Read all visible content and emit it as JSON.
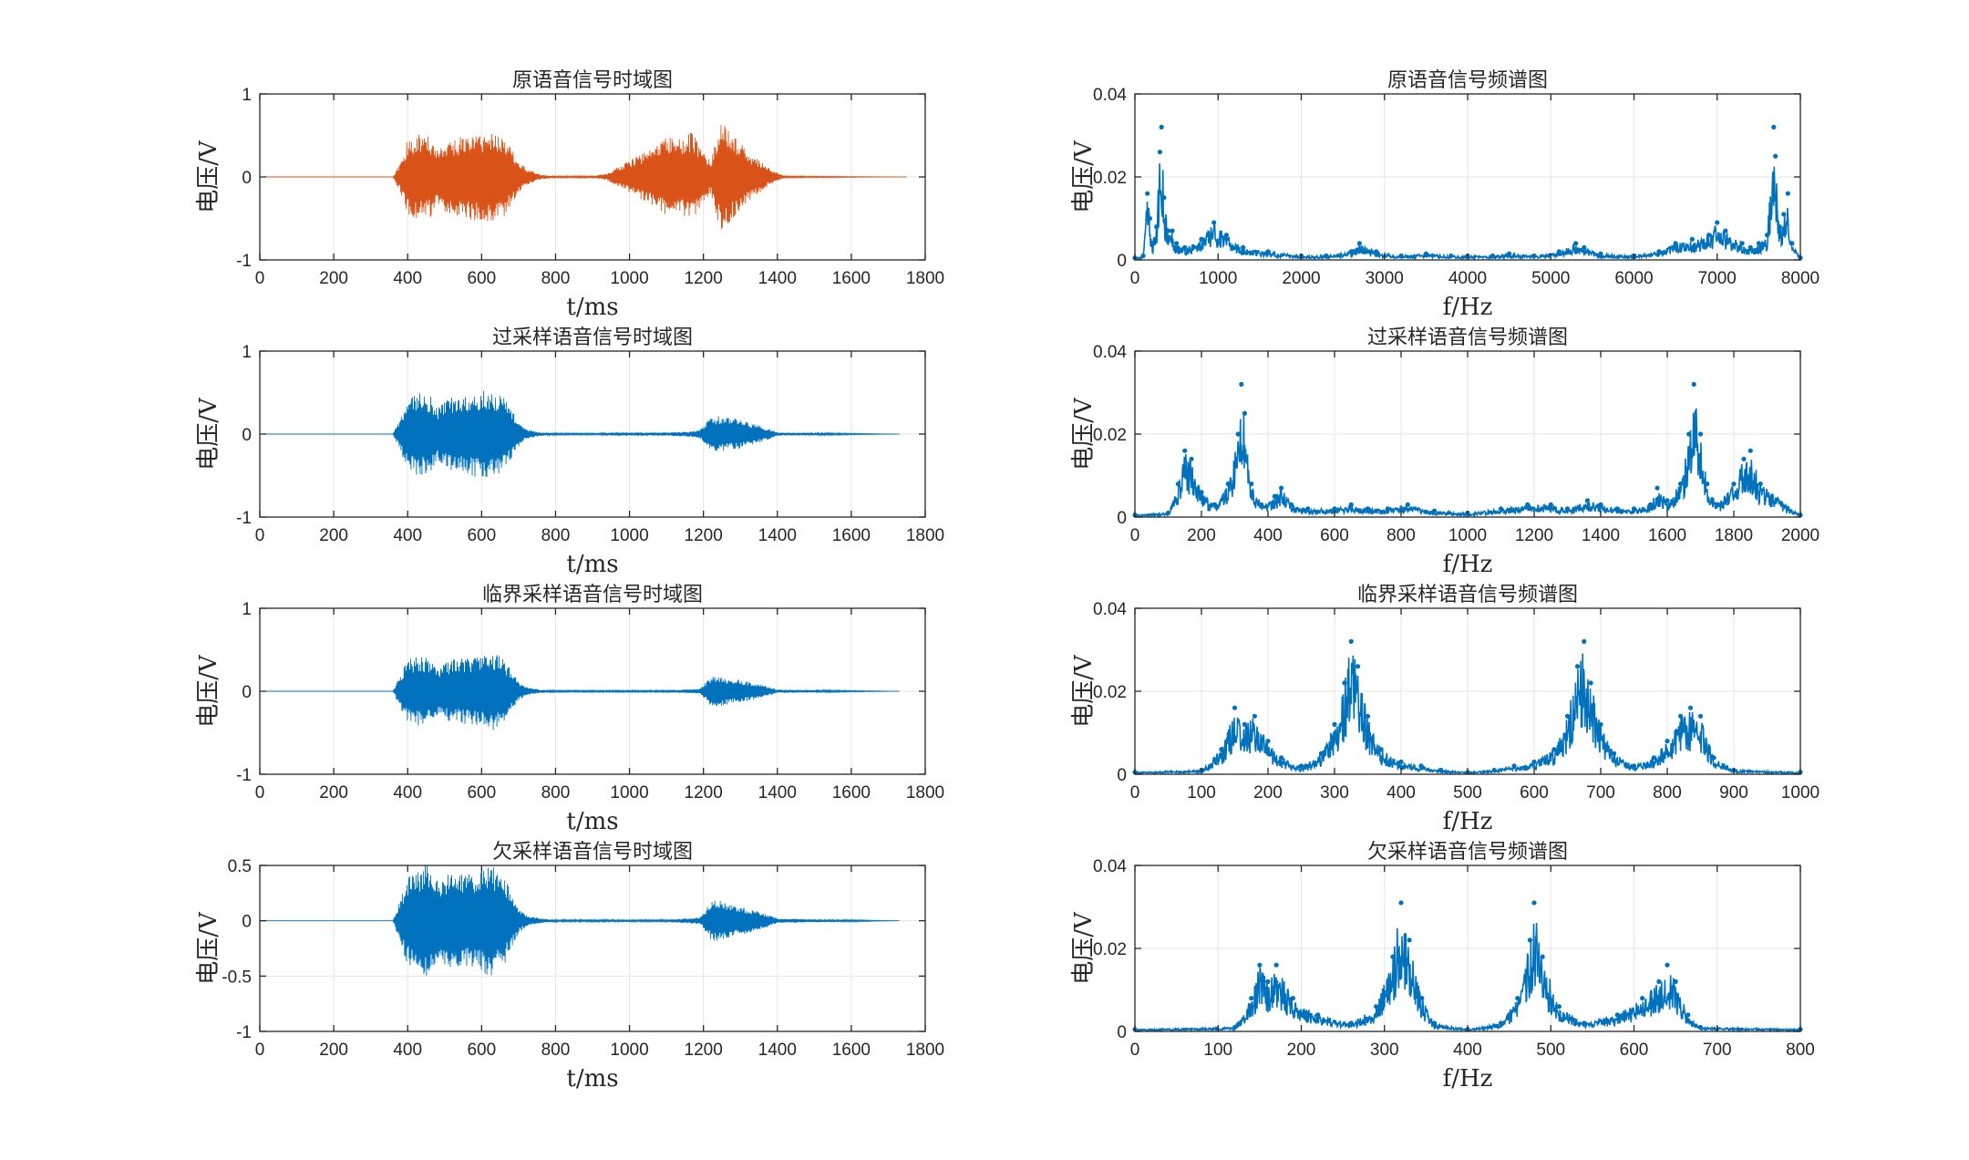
{
  "colors": {
    "original_series": "#D95319",
    "sampled_series": "#0072BD",
    "axis": "#262626",
    "grid": "#E6E6E6"
  },
  "chart_data": [
    {
      "type": "line",
      "title": "原语音信号时域图",
      "xlabel": "t/ms",
      "ylabel": "电压/V",
      "xlim": [
        0,
        1800
      ],
      "ylim": [
        -1,
        1
      ],
      "xticks": [
        0,
        200,
        400,
        600,
        800,
        1000,
        1200,
        1400,
        1600,
        1800
      ],
      "yticks": [
        -1,
        0,
        1
      ],
      "grid": true,
      "color": "#D95319",
      "x": [
        0,
        360,
        380,
        400,
        430,
        460,
        480,
        500,
        520,
        560,
        580,
        600,
        630,
        660,
        680,
        700,
        720,
        760,
        800,
        900,
        940,
        960,
        1000,
        1040,
        1080,
        1110,
        1140,
        1170,
        1200,
        1220,
        1240,
        1250,
        1260,
        1280,
        1300,
        1320,
        1350,
        1380,
        1420,
        1750
      ],
      "values": [
        0,
        0,
        0.18,
        0.45,
        0.52,
        0.5,
        0.35,
        0.42,
        0.46,
        0.5,
        0.53,
        0.52,
        0.55,
        0.5,
        0.35,
        0.2,
        0.1,
        0.03,
        0.01,
        0.01,
        0.04,
        0.1,
        0.2,
        0.3,
        0.42,
        0.5,
        0.45,
        0.55,
        0.3,
        0.2,
        0.55,
        0.68,
        0.6,
        0.5,
        0.42,
        0.3,
        0.2,
        0.1,
        0.01,
        0
      ]
    },
    {
      "type": "line",
      "title": "过采样语音信号时域图",
      "xlabel": "t/ms",
      "ylabel": "电压/V",
      "xlim": [
        0,
        1800
      ],
      "ylim": [
        -1,
        1
      ],
      "xticks": [
        0,
        200,
        400,
        600,
        800,
        1000,
        1200,
        1400,
        1600,
        1800
      ],
      "yticks": [
        -1,
        0,
        1
      ],
      "grid": true,
      "color": "#0072BD",
      "x": [
        0,
        360,
        380,
        400,
        430,
        460,
        480,
        500,
        520,
        560,
        580,
        600,
        630,
        660,
        680,
        700,
        720,
        760,
        800,
        920,
        960,
        1000,
        1100,
        1160,
        1190,
        1220,
        1240,
        1260,
        1300,
        1340,
        1380,
        1400,
        1730
      ],
      "values": [
        0,
        0,
        0.2,
        0.45,
        0.5,
        0.48,
        0.3,
        0.4,
        0.45,
        0.48,
        0.52,
        0.53,
        0.52,
        0.45,
        0.3,
        0.15,
        0.06,
        0.02,
        0.01,
        0.01,
        0.02,
        0.02,
        0.02,
        0.03,
        0.05,
        0.2,
        0.22,
        0.2,
        0.18,
        0.12,
        0.06,
        0.02,
        0
      ]
    },
    {
      "type": "line",
      "title": "临界采样语音信号时域图",
      "xlabel": "t/ms",
      "ylabel": "电压/V",
      "xlim": [
        0,
        1800
      ],
      "ylim": [
        -1,
        1
      ],
      "xticks": [
        0,
        200,
        400,
        600,
        800,
        1000,
        1200,
        1400,
        1600,
        1800
      ],
      "yticks": [
        -1,
        0,
        1
      ],
      "grid": true,
      "color": "#0072BD",
      "x": [
        0,
        360,
        380,
        400,
        430,
        460,
        480,
        500,
        520,
        560,
        580,
        600,
        630,
        660,
        680,
        700,
        720,
        760,
        800,
        920,
        1000,
        1100,
        1190,
        1220,
        1240,
        1260,
        1300,
        1340,
        1380,
        1400,
        1730
      ],
      "values": [
        0,
        0,
        0.2,
        0.4,
        0.42,
        0.4,
        0.28,
        0.35,
        0.38,
        0.4,
        0.42,
        0.45,
        0.47,
        0.4,
        0.25,
        0.12,
        0.05,
        0.02,
        0.01,
        0.01,
        0.01,
        0.01,
        0.03,
        0.18,
        0.2,
        0.16,
        0.14,
        0.1,
        0.05,
        0.02,
        0
      ]
    },
    {
      "type": "line",
      "title": "欠采样语音信号时域图",
      "xlabel": "t/ms",
      "ylabel": "电压/V",
      "xlim": [
        0,
        1800
      ],
      "ylim": [
        -1,
        0.5
      ],
      "xticks": [
        0,
        200,
        400,
        600,
        800,
        1000,
        1200,
        1400,
        1600,
        1800
      ],
      "yticks": [
        -1,
        -0.5,
        0,
        0.5
      ],
      "grid": true,
      "color": "#0072BD",
      "x": [
        0,
        360,
        380,
        400,
        430,
        460,
        480,
        500,
        520,
        560,
        580,
        600,
        630,
        660,
        680,
        700,
        720,
        760,
        800,
        920,
        1000,
        1100,
        1190,
        1220,
        1240,
        1260,
        1300,
        1340,
        1380,
        1400,
        1730
      ],
      "values": [
        0,
        0,
        0.2,
        0.4,
        0.45,
        0.55,
        0.38,
        0.42,
        0.45,
        0.42,
        0.44,
        0.48,
        0.5,
        0.42,
        0.25,
        0.12,
        0.05,
        0.02,
        0.01,
        0.01,
        0.01,
        0.01,
        0.03,
        0.17,
        0.2,
        0.16,
        0.13,
        0.09,
        0.05,
        0.02,
        0
      ]
    },
    {
      "type": "line",
      "title": "原语音信号频谱图",
      "xlabel": "f/Hz",
      "ylabel": "电压/V",
      "xlim": [
        0,
        8000
      ],
      "ylim": [
        0,
        0.04
      ],
      "xticks": [
        0,
        1000,
        2000,
        3000,
        4000,
        5000,
        6000,
        7000,
        8000
      ],
      "yticks": [
        0,
        0.02,
        0.04
      ],
      "grid": true,
      "color": "#0072BD",
      "x": [
        0,
        100,
        150,
        180,
        210,
        260,
        300,
        320,
        350,
        400,
        450,
        500,
        600,
        800,
        950,
        1100,
        1300,
        1600,
        2000,
        2300,
        2600,
        2700,
        2900,
        3200,
        3500,
        3800,
        4000,
        4300,
        4500,
        4800,
        5100,
        5300,
        5400,
        5600,
        6000,
        6300,
        6500,
        6700,
        6900,
        7000,
        7100,
        7300,
        7400,
        7500,
        7600,
        7680,
        7700,
        7750,
        7800,
        7850,
        7900,
        8000
      ],
      "values": [
        0.0005,
        0.001,
        0.016,
        0.01,
        0.004,
        0.008,
        0.026,
        0.032,
        0.015,
        0.007,
        0.007,
        0.004,
        0.003,
        0.005,
        0.009,
        0.006,
        0.003,
        0.002,
        0.001,
        0.001,
        0.002,
        0.004,
        0.002,
        0.001,
        0.0015,
        0.001,
        0.001,
        0.001,
        0.0015,
        0.001,
        0.002,
        0.004,
        0.003,
        0.0015,
        0.001,
        0.002,
        0.004,
        0.005,
        0.006,
        0.009,
        0.007,
        0.004,
        0.003,
        0.004,
        0.006,
        0.032,
        0.025,
        0.008,
        0.011,
        0.016,
        0.004,
        0.0005
      ]
    },
    {
      "type": "line",
      "title": "过采样语音信号频谱图",
      "xlabel": "f/Hz",
      "ylabel": "电压/V",
      "xlim": [
        0,
        2000
      ],
      "ylim": [
        0,
        0.04
      ],
      "xticks": [
        0,
        200,
        400,
        600,
        800,
        1000,
        1200,
        1400,
        1600,
        1800,
        2000
      ],
      "yticks": [
        0,
        0.02,
        0.04
      ],
      "grid": true,
      "color": "#0072BD",
      "x": [
        0,
        100,
        130,
        150,
        170,
        200,
        240,
        280,
        310,
        320,
        330,
        350,
        380,
        420,
        440,
        470,
        520,
        600,
        650,
        700,
        760,
        820,
        900,
        1000,
        1100,
        1180,
        1250,
        1300,
        1360,
        1400,
        1450,
        1500,
        1550,
        1570,
        1600,
        1640,
        1665,
        1680,
        1700,
        1720,
        1750,
        1800,
        1830,
        1850,
        1880,
        2000
      ],
      "values": [
        0.0005,
        0.001,
        0.008,
        0.016,
        0.014,
        0.006,
        0.003,
        0.008,
        0.02,
        0.032,
        0.025,
        0.008,
        0.003,
        0.005,
        0.007,
        0.003,
        0.002,
        0.002,
        0.003,
        0.002,
        0.002,
        0.003,
        0.0015,
        0.001,
        0.002,
        0.003,
        0.003,
        0.002,
        0.004,
        0.003,
        0.002,
        0.002,
        0.003,
        0.007,
        0.004,
        0.008,
        0.02,
        0.032,
        0.02,
        0.008,
        0.003,
        0.008,
        0.014,
        0.016,
        0.008,
        0.0005
      ]
    },
    {
      "type": "line",
      "title": "临界采样语音信号频谱图",
      "xlabel": "f/Hz",
      "ylabel": "电压/V",
      "xlim": [
        0,
        1000
      ],
      "ylim": [
        0,
        0.04
      ],
      "xticks": [
        0,
        100,
        200,
        300,
        400,
        500,
        600,
        700,
        800,
        900,
        1000
      ],
      "yticks": [
        0,
        0.02,
        0.04
      ],
      "grid": true,
      "color": "#0072BD",
      "x": [
        0,
        100,
        130,
        150,
        165,
        180,
        200,
        220,
        250,
        280,
        300,
        315,
        325,
        335,
        350,
        370,
        400,
        430,
        460,
        500,
        540,
        570,
        600,
        630,
        650,
        665,
        675,
        685,
        700,
        720,
        750,
        780,
        800,
        820,
        835,
        850,
        870,
        900,
        1000
      ],
      "values": [
        0.0005,
        0.001,
        0.006,
        0.016,
        0.012,
        0.014,
        0.008,
        0.004,
        0.002,
        0.005,
        0.012,
        0.022,
        0.032,
        0.026,
        0.014,
        0.006,
        0.003,
        0.002,
        0.001,
        0.0005,
        0.001,
        0.002,
        0.003,
        0.006,
        0.014,
        0.026,
        0.032,
        0.022,
        0.012,
        0.005,
        0.002,
        0.004,
        0.008,
        0.014,
        0.016,
        0.014,
        0.004,
        0.001,
        0.0005
      ]
    },
    {
      "type": "line",
      "title": "欠采样语音信号频谱图",
      "xlabel": "f/Hz",
      "ylabel": "电压/V",
      "xlim": [
        0,
        800
      ],
      "ylim": [
        0,
        0.04
      ],
      "xticks": [
        0,
        100,
        200,
        300,
        400,
        500,
        600,
        700,
        800
      ],
      "yticks": [
        0,
        0.02,
        0.04
      ],
      "grid": true,
      "color": "#0072BD",
      "x": [
        0,
        120,
        140,
        150,
        160,
        170,
        190,
        220,
        260,
        290,
        310,
        320,
        330,
        345,
        360,
        400,
        440,
        460,
        475,
        480,
        490,
        510,
        540,
        580,
        610,
        630,
        640,
        650,
        665,
        680,
        800
      ],
      "values": [
        0.0005,
        0.001,
        0.008,
        0.016,
        0.012,
        0.016,
        0.008,
        0.004,
        0.002,
        0.006,
        0.018,
        0.031,
        0.022,
        0.008,
        0.002,
        0.0005,
        0.002,
        0.008,
        0.022,
        0.031,
        0.018,
        0.006,
        0.002,
        0.004,
        0.008,
        0.012,
        0.016,
        0.012,
        0.004,
        0.001,
        0.0005
      ]
    }
  ]
}
